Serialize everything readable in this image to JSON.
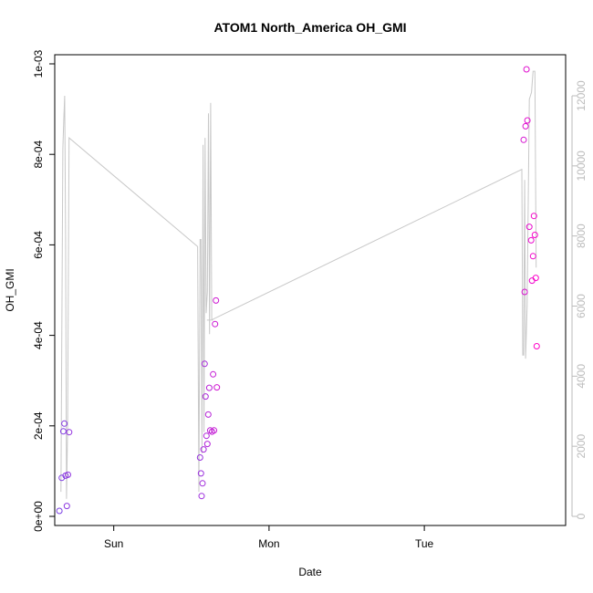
{
  "chart_data": {
    "type": "scatter",
    "title": "ATOM1 North_America OH_GMI",
    "xlabel": "Date",
    "ylabel": "OH_GMI",
    "x_ticks": [
      {
        "label": "Sun",
        "value": 1.0
      },
      {
        "label": "Mon",
        "value": 2.0
      },
      {
        "label": "Tue",
        "value": 3.0
      }
    ],
    "xlim": [
      0.62,
      3.91
    ],
    "ylim": [
      0,
      0.001
    ],
    "y_ticks": [
      {
        "label": "0e+00",
        "value": 0
      },
      {
        "label": "2e-04",
        "value": 0.0002
      },
      {
        "label": "4e-04",
        "value": 0.0004
      },
      {
        "label": "6e-04",
        "value": 0.0006
      },
      {
        "label": "8e-04",
        "value": 0.0008
      },
      {
        "label": "1e-03",
        "value": 0.001
      }
    ],
    "y2lim": [
      0,
      13000
    ],
    "y2_ticks": [
      {
        "label": "0",
        "value": 0
      },
      {
        "label": "2000",
        "value": 2000
      },
      {
        "label": "4000",
        "value": 4000
      },
      {
        "label": "6000",
        "value": 6000
      },
      {
        "label": "8000",
        "value": 8000
      },
      {
        "label": "10000",
        "value": 10000
      },
      {
        "label": "12000",
        "value": 12000
      }
    ],
    "grid": false,
    "points_color_start": "#7b3fe4",
    "points_color_end": "#ff00c8",
    "line_color": "#c8c8c8",
    "points": [
      {
        "x": 0.65,
        "y": 1.2e-05
      },
      {
        "x": 0.665,
        "y": 8.5e-05
      },
      {
        "x": 0.675,
        "y": 0.000188
      },
      {
        "x": 0.682,
        "y": 0.000205
      },
      {
        "x": 0.69,
        "y": 9e-05
      },
      {
        "x": 0.698,
        "y": 2.3e-05
      },
      {
        "x": 0.705,
        "y": 9.2e-05
      },
      {
        "x": 0.713,
        "y": 0.000186
      },
      {
        "x": 1.556,
        "y": 0.00013
      },
      {
        "x": 1.562,
        "y": 9.5e-05
      },
      {
        "x": 1.566,
        "y": 4.5e-05
      },
      {
        "x": 1.572,
        "y": 7.3e-05
      },
      {
        "x": 1.578,
        "y": 0.000148
      },
      {
        "x": 1.585,
        "y": 0.000337
      },
      {
        "x": 1.591,
        "y": 0.000265
      },
      {
        "x": 1.597,
        "y": 0.000178
      },
      {
        "x": 1.603,
        "y": 0.00016
      },
      {
        "x": 1.609,
        "y": 0.000225
      },
      {
        "x": 1.615,
        "y": 0.000284
      },
      {
        "x": 1.621,
        "y": 0.00019
      },
      {
        "x": 1.633,
        "y": 0.000187
      },
      {
        "x": 1.64,
        "y": 0.000314
      },
      {
        "x": 1.646,
        "y": 0.00019
      },
      {
        "x": 1.652,
        "y": 0.000425
      },
      {
        "x": 1.658,
        "y": 0.000477
      },
      {
        "x": 1.664,
        "y": 0.000285
      },
      {
        "x": 3.64,
        "y": 0.000832
      },
      {
        "x": 3.646,
        "y": 0.000496
      },
      {
        "x": 3.652,
        "y": 0.000862
      },
      {
        "x": 3.658,
        "y": 0.000988
      },
      {
        "x": 3.664,
        "y": 0.000875
      },
      {
        "x": 3.676,
        "y": 0.00064
      },
      {
        "x": 3.688,
        "y": 0.00061
      },
      {
        "x": 3.694,
        "y": 0.000521
      },
      {
        "x": 3.7,
        "y": 0.000575
      },
      {
        "x": 3.706,
        "y": 0.000664
      },
      {
        "x": 3.712,
        "y": 0.000622
      },
      {
        "x": 3.718,
        "y": 0.000527
      },
      {
        "x": 3.724,
        "y": 0.000376
      }
    ],
    "altitude_series": [
      {
        "x": 0.66,
        "y": 700
      },
      {
        "x": 0.672,
        "y": 10500
      },
      {
        "x": 0.678,
        "y": 11300
      },
      {
        "x": 0.684,
        "y": 12000
      },
      {
        "x": 0.69,
        "y": 8000
      },
      {
        "x": 0.696,
        "y": 500
      },
      {
        "x": 0.703,
        "y": 2500
      },
      {
        "x": 0.712,
        "y": 10800
      },
      {
        "x": 1.54,
        "y": 7700
      },
      {
        "x": 1.548,
        "y": 700
      },
      {
        "x": 1.556,
        "y": 7900
      },
      {
        "x": 1.562,
        "y": 7900
      },
      {
        "x": 1.568,
        "y": 1800
      },
      {
        "x": 1.575,
        "y": 10600
      },
      {
        "x": 1.581,
        "y": 2400
      },
      {
        "x": 1.588,
        "y": 10800
      },
      {
        "x": 1.595,
        "y": 5800
      },
      {
        "x": 1.603,
        "y": 6400
      },
      {
        "x": 1.61,
        "y": 11500
      },
      {
        "x": 1.617,
        "y": 5200
      },
      {
        "x": 1.624,
        "y": 11800
      },
      {
        "x": 1.631,
        "y": 5600
      },
      {
        "x": 1.64,
        "y": 5600
      },
      {
        "x": 1.6,
        "y": 5600
      },
      {
        "x": 1.613,
        "y": 5600
      },
      {
        "x": 1.627,
        "y": 5600
      },
      {
        "x": 3.628,
        "y": 9900
      },
      {
        "x": 3.634,
        "y": 4600
      },
      {
        "x": 3.64,
        "y": 4600
      },
      {
        "x": 3.646,
        "y": 9600
      },
      {
        "x": 3.652,
        "y": 4500
      },
      {
        "x": 3.662,
        "y": 6000
      },
      {
        "x": 3.676,
        "y": 11900
      },
      {
        "x": 3.69,
        "y": 12100
      },
      {
        "x": 3.7,
        "y": 12700
      },
      {
        "x": 3.712,
        "y": 12700
      },
      {
        "x": 3.72,
        "y": 7100
      }
    ]
  }
}
